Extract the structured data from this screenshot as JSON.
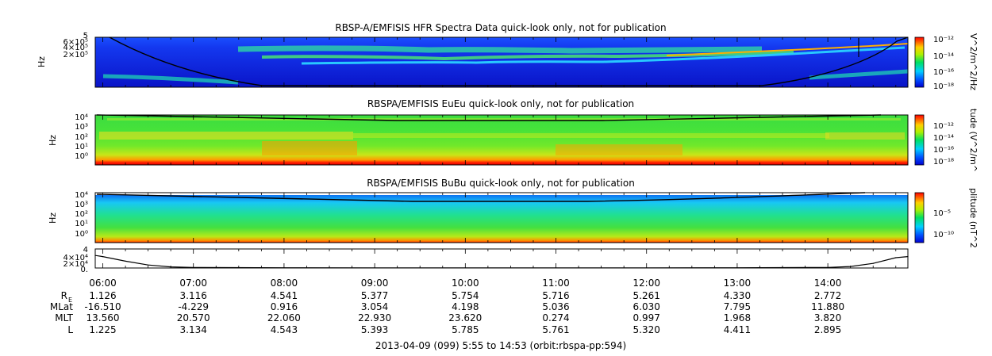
{
  "chart_data": [
    {
      "type": "heatmap",
      "title": "RBSP-A/EMFISIS  HFR Spectra Data quick-look only, not for publication",
      "ylabel": "Hz",
      "y_tick_labels": [
        "6×10⁵",
        "4×10⁵",
        "2×10⁵"
      ],
      "y_top_label": "5",
      "colorbar_label": "V^2/m^2/Hz",
      "colorbar_ticks": [
        "10⁻¹²",
        "10⁻¹⁴",
        "10⁻¹⁶",
        "10⁻¹⁸"
      ]
    },
    {
      "type": "heatmap",
      "title": "RBSPA/EMFISIS  EuEu quick-look only, not for publication",
      "ylabel": "Hz",
      "y_tick_labels": [
        "10⁴",
        "10³",
        "10²",
        "10¹",
        "10⁰"
      ],
      "colorbar_label": "tude (V^2/m^",
      "colorbar_ticks": [
        "10⁻¹²",
        "10⁻¹⁴",
        "10⁻¹⁶",
        "10⁻¹⁸"
      ]
    },
    {
      "type": "heatmap",
      "title": "RBSPA/EMFISIS  BuBu quick-look only, not for publication",
      "ylabel": "Hz",
      "y_tick_labels": [
        "10⁴",
        "10³",
        "10²",
        "10¹",
        "10⁰"
      ],
      "colorbar_label": "plitude (nT^2",
      "colorbar_ticks": [
        "10⁻⁵",
        "10⁻¹⁰"
      ]
    },
    {
      "type": "line",
      "y_tick_labels": [
        "4×10⁴",
        "2×10⁴",
        "0."
      ],
      "y_top_label": "4",
      "x": [
        "05:55",
        "06:00",
        "06:15",
        "06:30",
        "06:45",
        "07:00",
        "08:00",
        "09:00",
        "10:00",
        "11:00",
        "12:00",
        "13:00",
        "14:00",
        "14:15",
        "14:30",
        "14:45",
        "14:53"
      ],
      "values": [
        33000,
        30000,
        18000,
        8000,
        3000,
        1500,
        600,
        400,
        300,
        300,
        400,
        700,
        1500,
        4000,
        12000,
        27000,
        30000
      ]
    }
  ],
  "time_axis": {
    "tick_labels": [
      "06:00",
      "07:00",
      "08:00",
      "09:00",
      "10:00",
      "11:00",
      "12:00",
      "13:00",
      "14:00"
    ]
  },
  "ephemeris": {
    "rows": [
      {
        "label": "R",
        "label_sub": "E",
        "values": [
          "1.126",
          "3.116",
          "4.541",
          "5.377",
          "5.754",
          "5.716",
          "5.261",
          "4.330",
          "2.772"
        ]
      },
      {
        "label": "MLat",
        "values": [
          "-16.510",
          "-4.229",
          "0.916",
          "3.054",
          "4.198",
          "5.036",
          "6.030",
          "7.795",
          "11.880"
        ]
      },
      {
        "label": "MLT",
        "values": [
          "13.560",
          "20.570",
          "22.060",
          "22.930",
          "23.620",
          "0.274",
          "0.997",
          "1.968",
          "3.820"
        ]
      },
      {
        "label": "L",
        "values": [
          "1.225",
          "3.134",
          "4.543",
          "5.393",
          "5.785",
          "5.761",
          "5.320",
          "4.411",
          "2.895"
        ]
      }
    ]
  },
  "footer": "2013-04-09 (099) 5:55 to 14:53 (orbit:rbspa-pp:594)"
}
